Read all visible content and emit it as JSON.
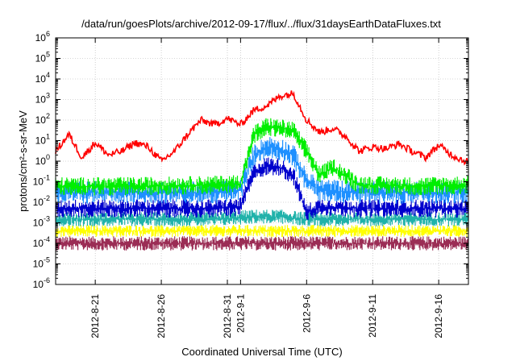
{
  "chart_data": {
    "type": "line",
    "title": "/data/run/goesPlots/archive/2012-09-17/flux/../flux/31daysEarthDataFluxes.txt",
    "xlabel": "Coordinated Universal Time (UTC)",
    "ylabel": "protons/cm²-s-sr-MeV",
    "yscale": "log",
    "ylim": [
      1e-06,
      1000000.0
    ],
    "xlim": [
      "2012-08-18",
      "2012-09-18 06:00"
    ],
    "grid": true,
    "legend": "none",
    "y_ticks": [
      {
        "base": "10",
        "exp": "-6"
      },
      {
        "base": "10",
        "exp": "-5"
      },
      {
        "base": "10",
        "exp": "-4"
      },
      {
        "base": "10",
        "exp": "-3"
      },
      {
        "base": "10",
        "exp": "-2"
      },
      {
        "base": "10",
        "exp": "-1"
      },
      {
        "base": "10",
        "exp": "0"
      },
      {
        "base": "10",
        "exp": "1"
      },
      {
        "base": "10",
        "exp": "2"
      },
      {
        "base": "10",
        "exp": "3"
      },
      {
        "base": "10",
        "exp": "4"
      },
      {
        "base": "10",
        "exp": "5"
      },
      {
        "base": "10",
        "exp": "6"
      }
    ],
    "x_ticks": [
      {
        "date": "2012-08-21",
        "label": "2012-8-21"
      },
      {
        "date": "2012-08-26",
        "label": "2012-8-26"
      },
      {
        "date": "2012-08-31",
        "label": "2012-8-31"
      },
      {
        "date": "2012-09-01",
        "label": "2012-9-1"
      },
      {
        "date": "2012-09-06",
        "label": "2012-9-6"
      },
      {
        "date": "2012-09-11",
        "label": "2012-9-11"
      },
      {
        "date": "2012-09-16",
        "label": "2012-9-16"
      }
    ],
    "series": [
      {
        "color": "#ff0000",
        "x": [
          "2012-08-18",
          "2012-08-19",
          "2012-08-20",
          "2012-08-21",
          "2012-08-22",
          "2012-08-23",
          "2012-08-24",
          "2012-08-25",
          "2012-08-26",
          "2012-08-27",
          "2012-08-28",
          "2012-08-29",
          "2012-08-30",
          "2012-08-31",
          "2012-09-01",
          "2012-09-02",
          "2012-09-03",
          "2012-09-04",
          "2012-09-05",
          "2012-09-06",
          "2012-09-07",
          "2012-09-08",
          "2012-09-09",
          "2012-09-10",
          "2012-09-11",
          "2012-09-12",
          "2012-09-13",
          "2012-09-14",
          "2012-09-15",
          "2012-09-16",
          "2012-09-17",
          "2012-09-18"
        ],
        "values": [
          3,
          20,
          1.5,
          8,
          2,
          3,
          8,
          5,
          1,
          3,
          20,
          100,
          60,
          120,
          60,
          300,
          500,
          1500,
          2000,
          100,
          25,
          40,
          15,
          3,
          5,
          4,
          7,
          3,
          1.5,
          6,
          2,
          1
        ]
      },
      {
        "color": "#00ee00",
        "x": [
          "2012-08-18",
          "2012-08-24",
          "2012-08-30",
          "2012-09-01",
          "2012-09-02",
          "2012-09-03",
          "2012-09-04",
          "2012-09-05",
          "2012-09-06",
          "2012-09-07",
          "2012-09-08",
          "2012-09-10",
          "2012-09-14",
          "2012-09-18"
        ],
        "values": [
          0.06,
          0.06,
          0.07,
          0.08,
          20,
          50,
          40,
          30,
          3,
          0.2,
          0.5,
          0.07,
          0.06,
          0.07
        ]
      },
      {
        "color": "#1e90ff",
        "x": [
          "2012-08-18",
          "2012-08-24",
          "2012-08-30",
          "2012-09-01",
          "2012-09-02",
          "2012-09-03",
          "2012-09-04",
          "2012-09-05",
          "2012-09-06",
          "2012-09-07",
          "2012-09-10",
          "2012-09-14",
          "2012-09-18"
        ],
        "values": [
          0.03,
          0.03,
          0.03,
          0.04,
          2,
          5,
          4,
          2,
          0.1,
          0.04,
          0.03,
          0.03,
          0.03
        ]
      },
      {
        "color": "#0000cd",
        "x": [
          "2012-08-18",
          "2012-08-24",
          "2012-08-30",
          "2012-09-01",
          "2012-09-02",
          "2012-09-03",
          "2012-09-04",
          "2012-09-05",
          "2012-09-06",
          "2012-09-07",
          "2012-09-10",
          "2012-09-14",
          "2012-09-18"
        ],
        "values": [
          0.005,
          0.005,
          0.005,
          0.006,
          0.3,
          0.6,
          0.5,
          0.2,
          0.003,
          0.006,
          0.005,
          0.005,
          0.005
        ]
      },
      {
        "color": "#20b2aa",
        "x": [
          "2012-08-18",
          "2012-08-24",
          "2012-08-30",
          "2012-09-02",
          "2012-09-04",
          "2012-09-06",
          "2012-09-10",
          "2012-09-14",
          "2012-09-18"
        ],
        "values": [
          0.0015,
          0.0015,
          0.0015,
          0.002,
          0.002,
          0.0015,
          0.0015,
          0.0015,
          0.0015
        ]
      },
      {
        "color": "#ffff00",
        "x": [
          "2012-08-18",
          "2012-08-24",
          "2012-08-30",
          "2012-09-02",
          "2012-09-04",
          "2012-09-06",
          "2012-09-10",
          "2012-09-14",
          "2012-09-18"
        ],
        "values": [
          0.0004,
          0.0004,
          0.0004,
          0.0004,
          0.0004,
          0.0004,
          0.0004,
          0.0004,
          0.0004
        ]
      },
      {
        "color": "#9b2d55",
        "x": [
          "2012-08-18",
          "2012-08-24",
          "2012-08-30",
          "2012-09-02",
          "2012-09-04",
          "2012-09-06",
          "2012-09-10",
          "2012-09-14",
          "2012-09-18"
        ],
        "values": [
          0.0001,
          0.0001,
          0.0001,
          0.0001,
          0.0001,
          0.0001,
          0.0001,
          0.0001,
          0.0001
        ]
      }
    ]
  }
}
